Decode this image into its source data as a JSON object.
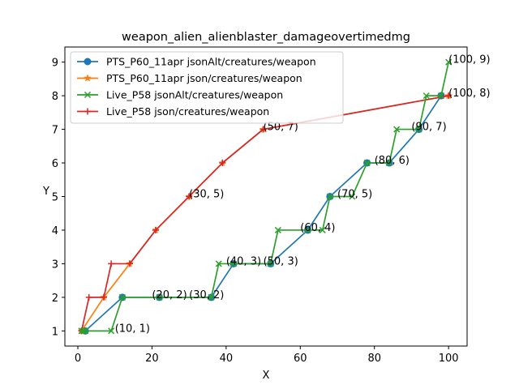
{
  "chart_data": {
    "type": "line",
    "title": "weapon_alien_alienblaster_damageovertimedmg",
    "xlabel": "X",
    "ylabel": "Y",
    "xlim": [
      -3.5,
      105
    ],
    "ylim": [
      0.55,
      9.45
    ],
    "xticks": [
      0,
      20,
      40,
      60,
      80,
      100
    ],
    "yticks": [
      1,
      2,
      3,
      4,
      5,
      6,
      7,
      8,
      9
    ],
    "grid": false,
    "legend_position": "top-left",
    "series": [
      {
        "name": "PTS_P60_11apr jsonAlt/creatures/weapon",
        "color": "#1f77b4",
        "marker": "circle",
        "x": [
          2,
          12,
          22,
          36,
          42,
          52,
          62,
          68,
          78,
          84,
          92,
          98
        ],
        "y": [
          1,
          2,
          2,
          2,
          3,
          3,
          4,
          5,
          6,
          6,
          7,
          8
        ]
      },
      {
        "name": "PTS_P60_11apr json/creatures/weapon",
        "color": "#ff7f0e",
        "marker": "star",
        "x": [
          1,
          7,
          14,
          21,
          30,
          39,
          50,
          100
        ],
        "y": [
          1,
          2,
          3,
          4,
          5,
          6,
          7,
          8
        ]
      },
      {
        "name": "Live_P58 jsonAlt/creatures/weapon",
        "color": "#2ca02c",
        "marker": "x",
        "x": [
          1,
          1.5,
          2,
          9,
          12,
          22,
          36,
          38,
          42,
          52,
          54,
          62,
          66,
          68,
          74,
          78,
          84,
          86,
          92,
          94,
          98,
          100
        ],
        "y": [
          1,
          1,
          1,
          1,
          2,
          2,
          2,
          3,
          3,
          3,
          4,
          4,
          4,
          5,
          5,
          6,
          6,
          7,
          7,
          8,
          8,
          9
        ],
        "step": true
      },
      {
        "name": "Live_P58 json/creatures/weapon",
        "color": "#d62728",
        "marker": "plus",
        "x": [
          1,
          3,
          7,
          9,
          14,
          21,
          30,
          39,
          50,
          100
        ],
        "y": [
          1,
          2,
          2,
          3,
          3,
          4,
          5,
          6,
          7,
          8
        ],
        "step": false
      }
    ],
    "annotations": [
      {
        "text": "(10, 1)",
        "x": 10,
        "y": 1
      },
      {
        "text": "(20, 2)",
        "x": 20,
        "y": 2
      },
      {
        "text": "(30, 2)",
        "x": 30,
        "y": 2
      },
      {
        "text": "(30, 5)",
        "x": 30,
        "y": 5
      },
      {
        "text": "(40, 3)",
        "x": 40,
        "y": 3
      },
      {
        "text": "(50, 3)",
        "x": 50,
        "y": 3
      },
      {
        "text": "(50, 7)",
        "x": 50,
        "y": 7
      },
      {
        "text": "(60, 4)",
        "x": 60,
        "y": 4
      },
      {
        "text": "(70, 5)",
        "x": 70,
        "y": 5
      },
      {
        "text": "(80, 6)",
        "x": 80,
        "y": 6
      },
      {
        "text": "(90, 7)",
        "x": 90,
        "y": 7
      },
      {
        "text": "(100, 8)",
        "x": 100,
        "y": 8
      },
      {
        "text": "(100, 9)",
        "x": 100,
        "y": 9
      }
    ]
  }
}
